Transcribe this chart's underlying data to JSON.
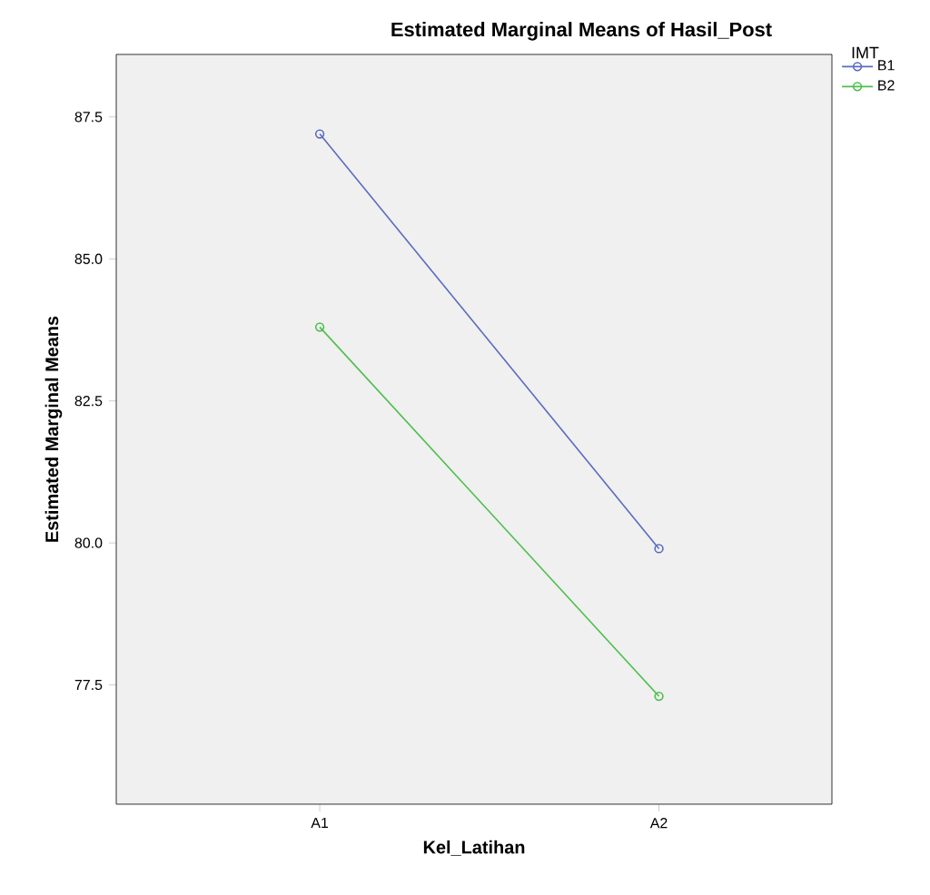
{
  "chart_data": {
    "type": "line",
    "title": "Estimated Marginal Means of Hasil_Post",
    "xlabel": "Kel_Latihan",
    "ylabel": "Estimated Marginal Means",
    "legend_title": "IMT",
    "categories": [
      "A1",
      "A2"
    ],
    "series": [
      {
        "name": "B1",
        "color": "#5a6bbf",
        "values": [
          87.2,
          79.9
        ]
      },
      {
        "name": "B2",
        "color": "#4cbf4c",
        "values": [
          83.8,
          77.3
        ]
      }
    ],
    "ylim": [
      75.4,
      88.6
    ],
    "yticks": [
      77.5,
      {
        "value": 80,
        "label": "80.0"
      },
      82.5,
      {
        "value": 85,
        "label": "85.0"
      },
      87.5
    ],
    "legend": "top right",
    "marker": "circle",
    "line_style": "solid",
    "grid": false
  }
}
